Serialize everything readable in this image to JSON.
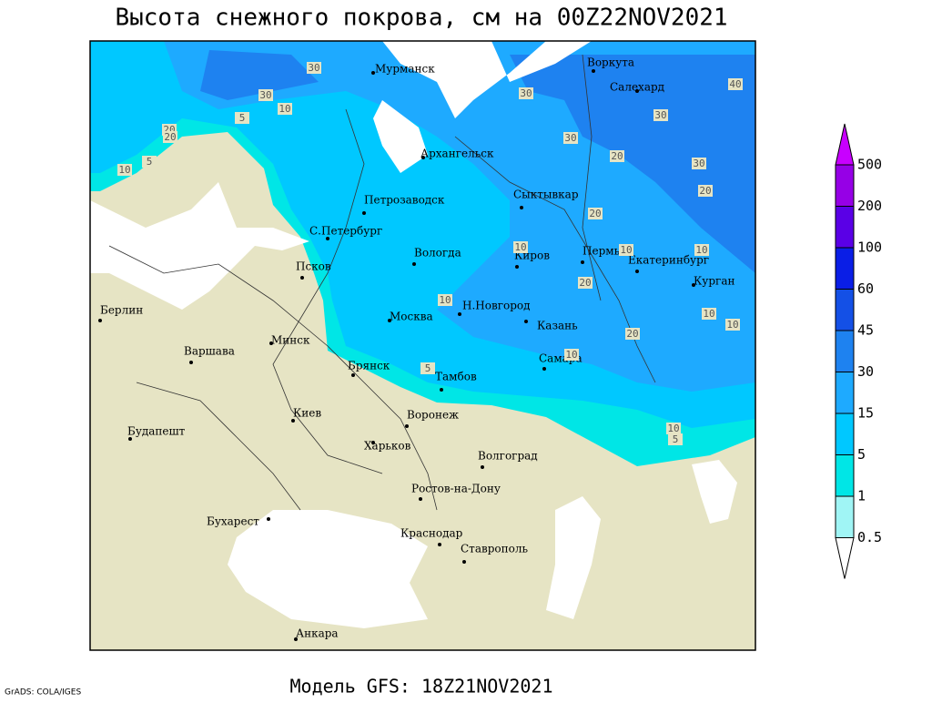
{
  "title": "Высота снежного покрова, см на 00Z22NOV2021",
  "subtitle": "Модель GFS: 18Z21NOV2021",
  "credit": "GrADS: COLA/IGES",
  "colorbar": {
    "levels": [
      0.5,
      1,
      5,
      15,
      30,
      45,
      60,
      100,
      200,
      500
    ],
    "colors": [
      "#ffffff",
      "#a0f5f5",
      "#00e6e6",
      "#00c8ff",
      "#1eaaff",
      "#1e82f0",
      "#1450e6",
      "#0a1ee6",
      "#5a00e6",
      "#9600e6",
      "#c800ff"
    ]
  },
  "cities": [
    "Мурманск",
    "Воркута",
    "Салехард",
    "Архангельск",
    "Сыктывкар",
    "Петрозаводск",
    "С.Петербург",
    "Вологда",
    "Киров",
    "Пермь",
    "Екатеринбург",
    "Курган",
    "Псков",
    "Москва",
    "Н.Новгород",
    "Казань",
    "Берлин",
    "Варшава",
    "Минск",
    "Брянск",
    "Тамбов",
    "Самара",
    "Киев",
    "Воронеж",
    "Харьков",
    "Волгоград",
    "Будапешт",
    "Ростов-на-Дону",
    "Бухарест",
    "Краснодар",
    "Ставрополь",
    "Анкара"
  ],
  "contour_labels": [
    30,
    30,
    40,
    30,
    10,
    5,
    20,
    20,
    10,
    5,
    30,
    30,
    20,
    30,
    20,
    20,
    10,
    10,
    10,
    20,
    10,
    10,
    10,
    20,
    10,
    5,
    10,
    5
  ]
}
